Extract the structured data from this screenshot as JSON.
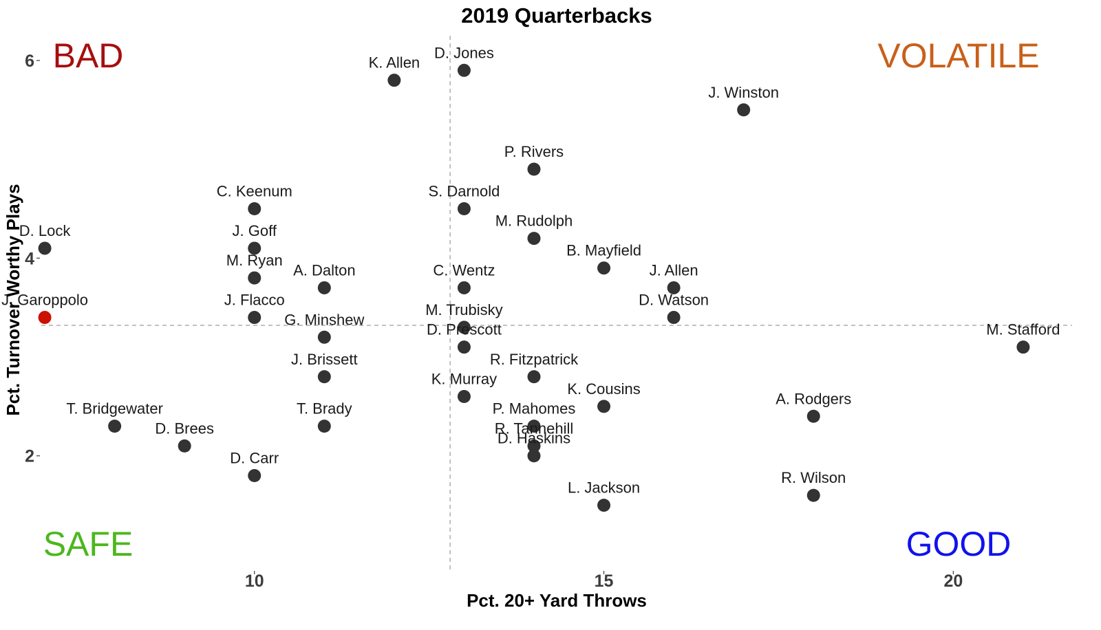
{
  "chart_data": {
    "type": "scatter",
    "title": "2019 Quarterbacks",
    "xlabel": "Pct. 20+ Yard Throws",
    "ylabel": "Pct. Turnover Worthy Plays",
    "xlim": [
      6.95,
      21.7
    ],
    "ylim": [
      0.85,
      6.25
    ],
    "x_ticks": [
      10,
      15,
      20
    ],
    "y_ticks": [
      2,
      4,
      6
    ],
    "grid": false,
    "reference_lines": {
      "x": 12.8,
      "y": 3.32
    },
    "quadrant_labels": [
      {
        "text": "BAD",
        "position": "top-left",
        "color": "#a50f0f"
      },
      {
        "text": "VOLATILE",
        "position": "top-right",
        "color": "#c8601a"
      },
      {
        "text": "SAFE",
        "position": "bottom-left",
        "color": "#4cb71e"
      },
      {
        "text": "GOOD",
        "position": "bottom-right",
        "color": "#1111ee"
      }
    ],
    "point_color": "#333333",
    "highlight_color": "#cc1100",
    "reference_line_color": "#b3b3b3",
    "points": [
      {
        "name": "K. Allen",
        "x": 12.0,
        "y": 5.8
      },
      {
        "name": "D. Jones",
        "x": 13.0,
        "y": 5.9
      },
      {
        "name": "J. Winston",
        "x": 17.0,
        "y": 5.5
      },
      {
        "name": "P. Rivers",
        "x": 14.0,
        "y": 4.9
      },
      {
        "name": "C. Keenum",
        "x": 10.0,
        "y": 4.5
      },
      {
        "name": "S. Darnold",
        "x": 13.0,
        "y": 4.5
      },
      {
        "name": "D. Lock",
        "x": 7.0,
        "y": 4.1
      },
      {
        "name": "J. Goff",
        "x": 10.0,
        "y": 4.1
      },
      {
        "name": "M. Rudolph",
        "x": 14.0,
        "y": 4.2
      },
      {
        "name": "B. Mayfield",
        "x": 15.0,
        "y": 3.9
      },
      {
        "name": "M. Ryan",
        "x": 10.0,
        "y": 3.8
      },
      {
        "name": "A. Dalton",
        "x": 11.0,
        "y": 3.7
      },
      {
        "name": "C. Wentz",
        "x": 13.0,
        "y": 3.7
      },
      {
        "name": "J. Allen",
        "x": 16.0,
        "y": 3.7
      },
      {
        "name": "J. Garoppolo",
        "x": 7.0,
        "y": 3.4,
        "highlight": true
      },
      {
        "name": "J. Flacco",
        "x": 10.0,
        "y": 3.4
      },
      {
        "name": "D. Watson",
        "x": 16.0,
        "y": 3.4
      },
      {
        "name": "G. Minshew",
        "x": 11.0,
        "y": 3.2
      },
      {
        "name": "M. Trubisky",
        "x": 13.0,
        "y": 3.3
      },
      {
        "name": "D. Prescott",
        "x": 13.0,
        "y": 3.1
      },
      {
        "name": "M. Stafford",
        "x": 21.0,
        "y": 3.1
      },
      {
        "name": "R. Fitzpatrick",
        "x": 14.0,
        "y": 2.8
      },
      {
        "name": "J. Brissett",
        "x": 11.0,
        "y": 2.8
      },
      {
        "name": "K. Murray",
        "x": 13.0,
        "y": 2.6
      },
      {
        "name": "K. Cousins",
        "x": 15.0,
        "y": 2.5
      },
      {
        "name": "A. Rodgers",
        "x": 18.0,
        "y": 2.4
      },
      {
        "name": "T. Bridgewater",
        "x": 8.0,
        "y": 2.3
      },
      {
        "name": "T. Brady",
        "x": 11.0,
        "y": 2.3
      },
      {
        "name": "P. Mahomes",
        "x": 14.0,
        "y": 2.3
      },
      {
        "name": "D. Brees",
        "x": 9.0,
        "y": 2.1
      },
      {
        "name": "R. Tannehill",
        "x": 14.0,
        "y": 2.1
      },
      {
        "name": "D. Haskins",
        "x": 14.0,
        "y": 2.0
      },
      {
        "name": "D. Carr",
        "x": 10.0,
        "y": 1.8
      },
      {
        "name": "L. Jackson",
        "x": 15.0,
        "y": 1.5
      },
      {
        "name": "R. Wilson",
        "x": 18.0,
        "y": 1.6
      }
    ]
  }
}
